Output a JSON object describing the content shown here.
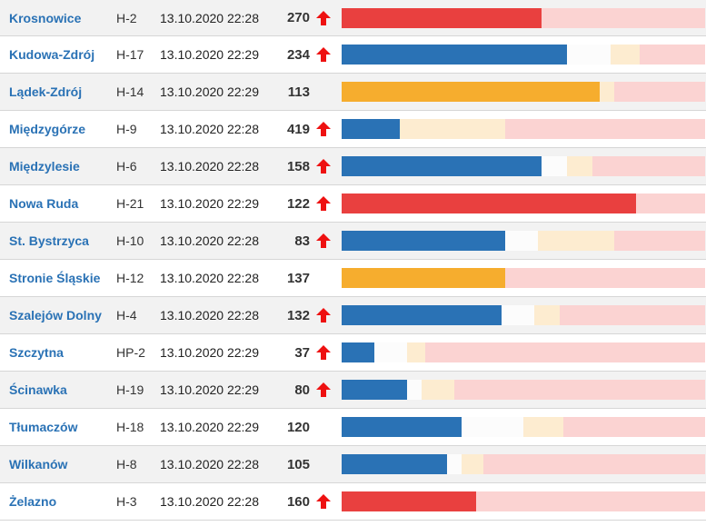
{
  "colors": {
    "blue": "#2a72b5",
    "orange": "#f6ad2e",
    "red": "#e9403f",
    "beige": "#fdecd0",
    "pink": "#fbd3d2",
    "white": "#fcfcfc",
    "arrow": "#ee1111"
  },
  "trend_icon": "arrow-up-icon",
  "rows": [
    {
      "name": "Krosnowice",
      "code": "H-2",
      "time": "13.10.2020 22:28",
      "level": "270",
      "trend": "up",
      "fill_color": "red",
      "fill_fraction": 0.55,
      "white_end": 0.55,
      "beige_end": 0.55
    },
    {
      "name": "Kudowa-Zdrój",
      "code": "H-17",
      "time": "13.10.2020 22:29",
      "level": "234",
      "trend": "up",
      "fill_color": "blue",
      "fill_fraction": 0.62,
      "white_end": 0.74,
      "beige_end": 0.82
    },
    {
      "name": "Lądek-Zdrój",
      "code": "H-14",
      "time": "13.10.2020 22:29",
      "level": "113",
      "trend": "none",
      "fill_color": "orange",
      "fill_fraction": 0.71,
      "white_end": 0.71,
      "beige_end": 0.75
    },
    {
      "name": "Międzygórze",
      "code": "H-9",
      "time": "13.10.2020 22:28",
      "level": "419",
      "trend": "up",
      "fill_color": "blue",
      "fill_fraction": 0.16,
      "white_end": 0.16,
      "beige_end": 0.45
    },
    {
      "name": "Międzylesie",
      "code": "H-6",
      "time": "13.10.2020 22:28",
      "level": "158",
      "trend": "up",
      "fill_color": "blue",
      "fill_fraction": 0.55,
      "white_end": 0.62,
      "beige_end": 0.69
    },
    {
      "name": "Nowa Ruda",
      "code": "H-21",
      "time": "13.10.2020 22:29",
      "level": "122",
      "trend": "up",
      "fill_color": "red",
      "fill_fraction": 0.81,
      "white_end": 0.81,
      "beige_end": 0.81
    },
    {
      "name": "St. Bystrzyca",
      "code": "H-10",
      "time": "13.10.2020 22:28",
      "level": "83",
      "trend": "up",
      "fill_color": "blue",
      "fill_fraction": 0.45,
      "white_end": 0.54,
      "beige_end": 0.75
    },
    {
      "name": "Stronie Śląskie",
      "code": "H-12",
      "time": "13.10.2020 22:28",
      "level": "137",
      "trend": "none",
      "fill_color": "orange",
      "fill_fraction": 0.45,
      "white_end": 0.45,
      "beige_end": 0.45
    },
    {
      "name": "Szalejów Dolny",
      "code": "H-4",
      "time": "13.10.2020 22:28",
      "level": "132",
      "trend": "up",
      "fill_color": "blue",
      "fill_fraction": 0.44,
      "white_end": 0.53,
      "beige_end": 0.6
    },
    {
      "name": "Szczytna",
      "code": "HP-2",
      "time": "13.10.2020 22:29",
      "level": "37",
      "trend": "up",
      "fill_color": "blue",
      "fill_fraction": 0.09,
      "white_end": 0.18,
      "beige_end": 0.23
    },
    {
      "name": "Ścinawka",
      "code": "H-19",
      "time": "13.10.2020 22:29",
      "level": "80",
      "trend": "up",
      "fill_color": "blue",
      "fill_fraction": 0.18,
      "white_end": 0.22,
      "beige_end": 0.31
    },
    {
      "name": "Tłumaczów",
      "code": "H-18",
      "time": "13.10.2020 22:29",
      "level": "120",
      "trend": "none",
      "fill_color": "blue",
      "fill_fraction": 0.33,
      "white_end": 0.5,
      "beige_end": 0.61
    },
    {
      "name": "Wilkanów",
      "code": "H-8",
      "time": "13.10.2020 22:28",
      "level": "105",
      "trend": "none",
      "fill_color": "blue",
      "fill_fraction": 0.29,
      "white_end": 0.33,
      "beige_end": 0.39
    },
    {
      "name": "Żelazno",
      "code": "H-3",
      "time": "13.10.2020 22:28",
      "level": "160",
      "trend": "up",
      "fill_color": "red",
      "fill_fraction": 0.37,
      "white_end": 0.37,
      "beige_end": 0.37
    }
  ]
}
